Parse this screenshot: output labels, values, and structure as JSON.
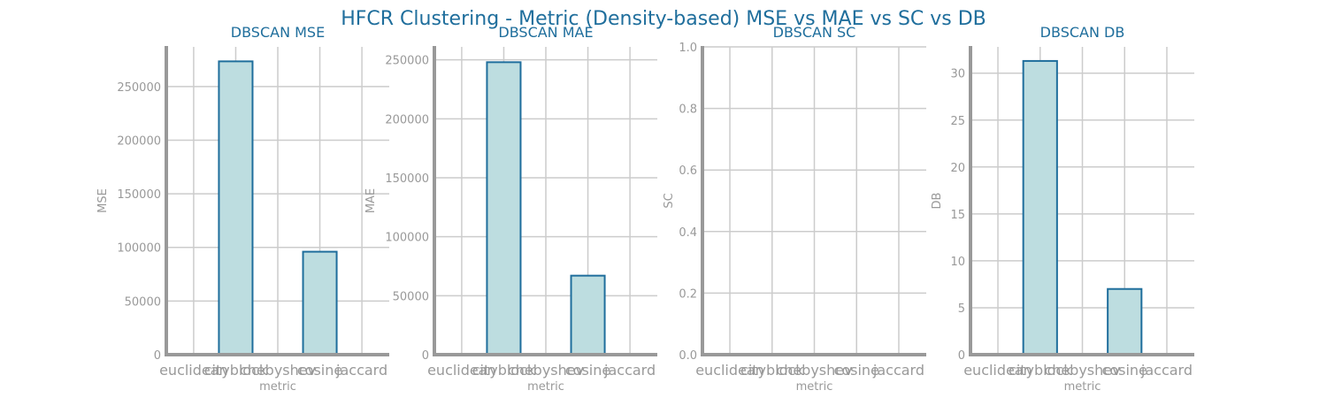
{
  "suptitle": "HFCR Clustering - Metric (Density-based) MSE vs MAE vs SC vs DB",
  "colors": {
    "title": "#1f6e9c",
    "bar_fill": "#bddde0",
    "bar_edge": "#1f6e9c",
    "grid": "#cccccc",
    "axis": "#999999",
    "tick_text": "#999999"
  },
  "chart_data": [
    {
      "type": "bar",
      "title": "DBSCAN MSE",
      "xlabel": "metric",
      "ylabel": "MSE",
      "categories": [
        "euclidean",
        "cityblock",
        "chebyshev",
        "cosine",
        "jaccard"
      ],
      "values": [
        null,
        273500,
        null,
        96000,
        null
      ],
      "ylim": [
        0,
        287000
      ],
      "yticks": [
        0,
        50000,
        100000,
        150000,
        200000,
        250000
      ],
      "ytick_labels": [
        "0",
        "50000",
        "100000",
        "150000",
        "200000",
        "250000"
      ],
      "grid": true
    },
    {
      "type": "bar",
      "title": "DBSCAN MAE",
      "xlabel": "metric",
      "ylabel": "MAE",
      "categories": [
        "euclidean",
        "cityblock",
        "chebyshev",
        "cosine",
        "jaccard"
      ],
      "values": [
        null,
        248000,
        null,
        67000,
        null
      ],
      "ylim": [
        0,
        261000
      ],
      "yticks": [
        0,
        50000,
        100000,
        150000,
        200000,
        250000
      ],
      "ytick_labels": [
        "0",
        "50000",
        "100000",
        "150000",
        "200000",
        "250000"
      ],
      "grid": true
    },
    {
      "type": "bar",
      "title": "DBSCAN SC",
      "xlabel": "metric",
      "ylabel": "SC",
      "categories": [
        "euclidean",
        "cityblock",
        "chebyshev",
        "cosine",
        "jaccard"
      ],
      "values": [
        null,
        null,
        null,
        null,
        null
      ],
      "ylim": [
        0,
        1
      ],
      "yticks": [
        0,
        0.2,
        0.4,
        0.6,
        0.8,
        1.0
      ],
      "ytick_labels": [
        "0.0",
        "0.2",
        "0.4",
        "0.6",
        "0.8",
        "1.0"
      ],
      "grid": true
    },
    {
      "type": "bar",
      "title": "DBSCAN DB",
      "xlabel": "metric",
      "ylabel": "DB",
      "categories": [
        "euclidean",
        "cityblock",
        "chebyshev",
        "cosine",
        "jaccard"
      ],
      "values": [
        null,
        31.3,
        null,
        7.0,
        null
      ],
      "ylim": [
        0,
        32.8
      ],
      "yticks": [
        0,
        5,
        10,
        15,
        20,
        25,
        30
      ],
      "ytick_labels": [
        "0",
        "5",
        "10",
        "15",
        "20",
        "25",
        "30"
      ],
      "grid": true
    }
  ]
}
